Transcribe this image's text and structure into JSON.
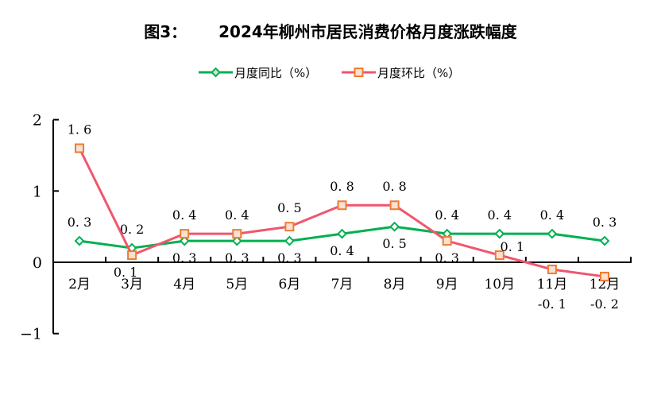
{
  "chart_data": {
    "type": "line",
    "title_prefix": "图3：",
    "title": "2024年柳州市居民消费价格月度涨跌幅度",
    "categories": [
      "2月",
      "3月",
      "4月",
      "5月",
      "6月",
      "7月",
      "8月",
      "9月",
      "10月",
      "11月",
      "12月"
    ],
    "ylim": [
      -1,
      2
    ],
    "yticks": [
      -1,
      0,
      1,
      2
    ],
    "grid": false,
    "legend_position": "top",
    "series": [
      {
        "name": "月度同比（%）",
        "color": "#00b050",
        "marker": "diamond",
        "values": [
          0.3,
          0.2,
          0.3,
          0.3,
          0.3,
          0.4,
          0.5,
          0.4,
          0.4,
          0.4,
          0.3
        ]
      },
      {
        "name": "月度环比（%）",
        "color": "#f0566e",
        "marker_color": "#ed7d31",
        "marker_fill": "#fbe0d4",
        "marker": "square",
        "values": [
          1.6,
          0.1,
          0.4,
          0.4,
          0.5,
          0.8,
          0.8,
          0.3,
          0.1,
          -0.1,
          -0.2
        ]
      }
    ]
  }
}
